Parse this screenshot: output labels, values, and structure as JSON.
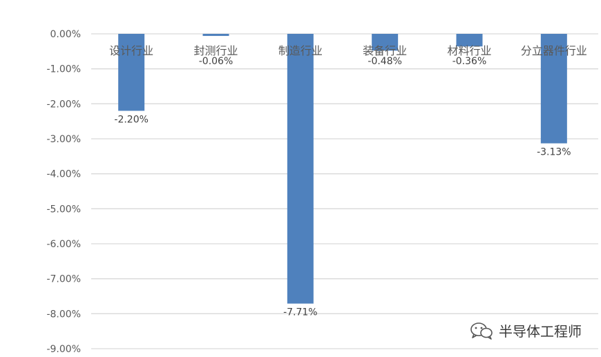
{
  "chart_data": {
    "type": "bar",
    "categories": [
      "设计行业",
      "封测行业",
      "制造行业",
      "装备行业",
      "材料行业",
      "分立器件行业"
    ],
    "values": [
      -2.2,
      -0.06,
      -7.71,
      -0.48,
      -0.36,
      -3.13
    ],
    "data_labels": [
      "-2.20%",
      "-0.06%",
      "-7.71%",
      "-0.48%",
      "-0.36%",
      "-3.13%"
    ],
    "ylim": [
      -9,
      0
    ],
    "yticks": [
      0,
      -1,
      -2,
      -3,
      -4,
      -5,
      -6,
      -7,
      -8,
      -9
    ],
    "ytick_labels": [
      "0.00%",
      "-1.00%",
      "-2.00%",
      "-3.00%",
      "-4.00%",
      "-5.00%",
      "-6.00%",
      "-7.00%",
      "-8.00%",
      "-9.00%"
    ],
    "title": "",
    "xlabel": "",
    "ylabel": "",
    "grid": true,
    "bar_color": "#4F81BD",
    "grid_color": "#D9D9D9"
  },
  "watermark": {
    "icon": "wechat-icon",
    "text": "半导体工程师"
  }
}
